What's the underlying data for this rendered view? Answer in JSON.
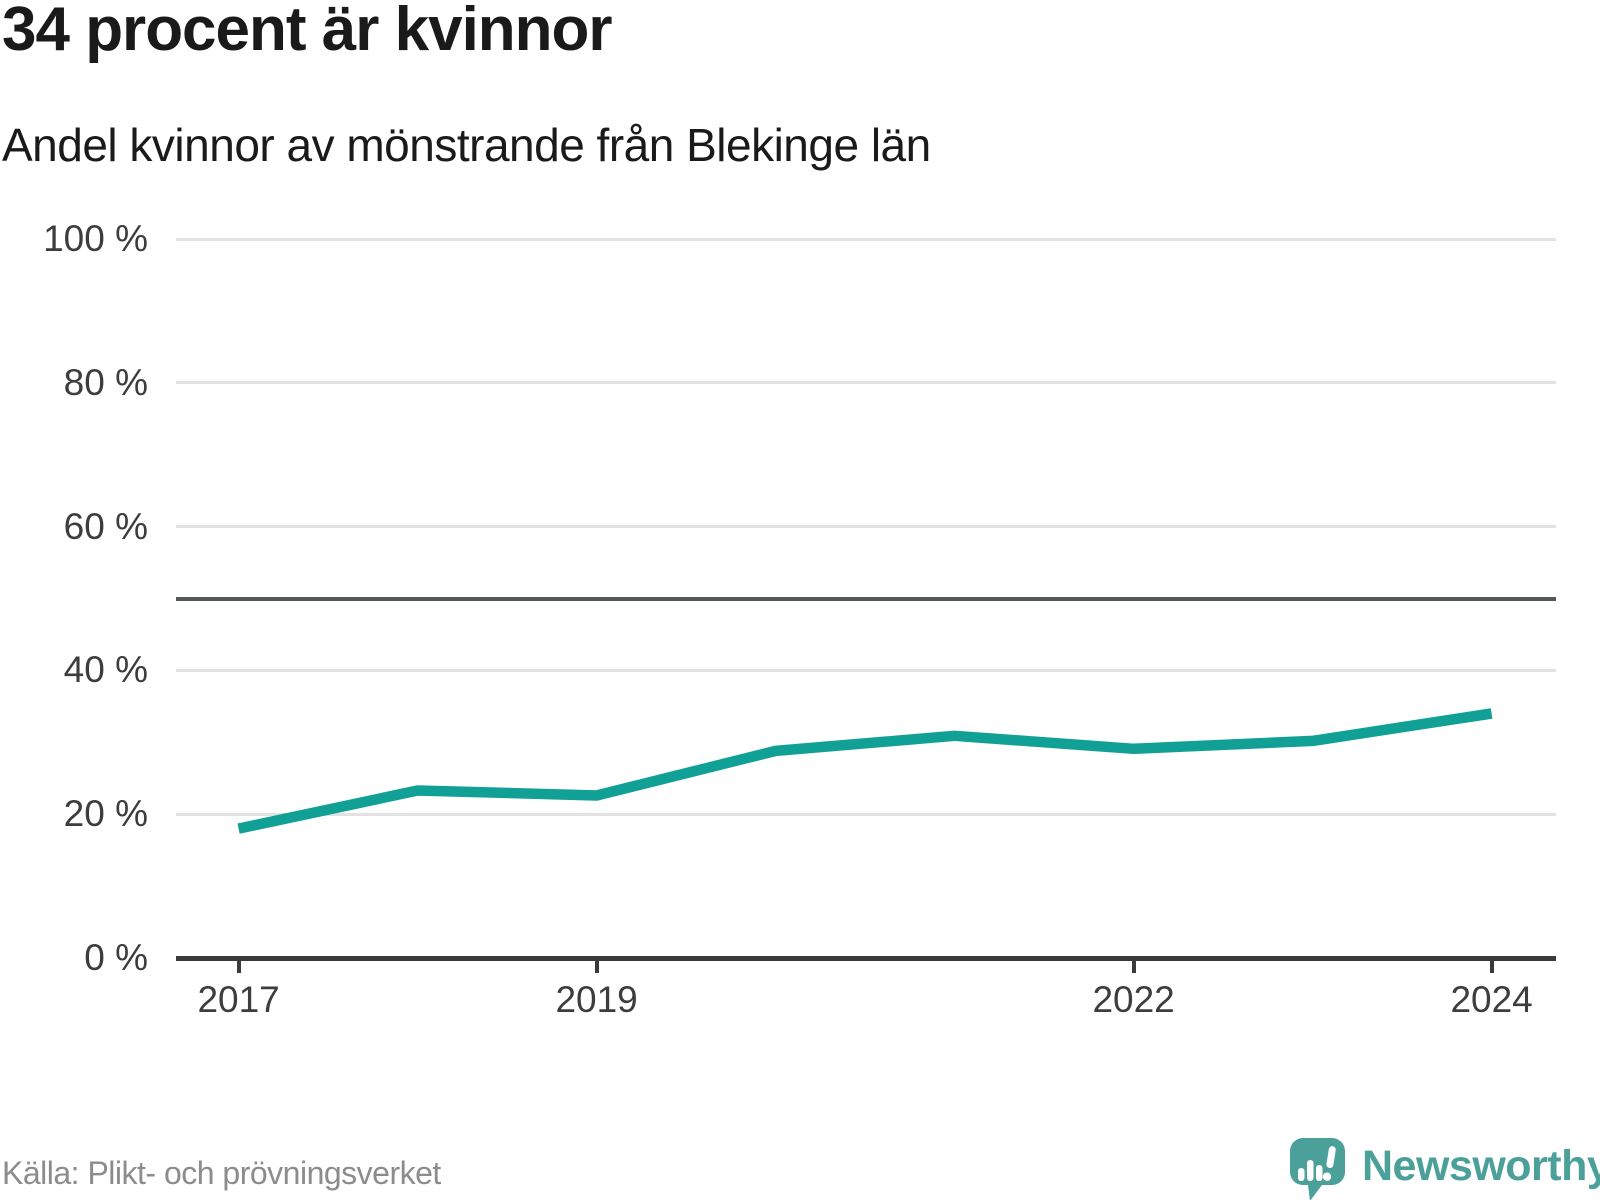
{
  "header": {
    "title": "34 procent är kvinnor",
    "subtitle": "Andel kvinnor av mönstrande från Blekinge län"
  },
  "footer": {
    "source": "Källa: Plikt- och prövningsverket",
    "brand": "Newsworthy",
    "brand_icon": "speech-bubble-bar-chart-icon"
  },
  "colors": {
    "line": "#10a095",
    "brand_teal": "#4ba19a",
    "gridline": "#e2e2e2",
    "reference_line": "#55585a",
    "axis": "#3b3b3b",
    "title_text": "#1a1a1a",
    "axis_text": "#3d3d3d",
    "source_text": "#8c8c8c"
  },
  "chart_data": {
    "type": "line",
    "title": "34 procent är kvinnor",
    "subtitle": "Andel kvinnor av mönstrande från Blekinge län",
    "xlabel": "",
    "ylabel": "",
    "x": [
      2017,
      2018,
      2019,
      2020,
      2021,
      2022,
      2023,
      2024
    ],
    "series": [
      {
        "name": "Andel kvinnor av mönstrande från Blekinge län",
        "values": [
          18,
          23.3,
          22.6,
          28.8,
          30.9,
          29.1,
          30.2,
          34
        ]
      }
    ],
    "ylim": [
      0,
      100
    ],
    "xlim": [
      2016.65,
      2024.36
    ],
    "yticks": [
      {
        "value": 0,
        "label": "0 %"
      },
      {
        "value": 20,
        "label": "20 %"
      },
      {
        "value": 40,
        "label": "40 %"
      },
      {
        "value": 60,
        "label": "60 %"
      },
      {
        "value": 80,
        "label": "80 %"
      },
      {
        "value": 100,
        "label": "100 %"
      }
    ],
    "xticks": [
      {
        "value": 2017,
        "label": "2017"
      },
      {
        "value": 2019,
        "label": "2019"
      },
      {
        "value": 2022,
        "label": "2022"
      },
      {
        "value": 2024,
        "label": "2024"
      }
    ],
    "reference_line": {
      "value": 50
    },
    "grid": "horizontal",
    "legend": "none"
  }
}
